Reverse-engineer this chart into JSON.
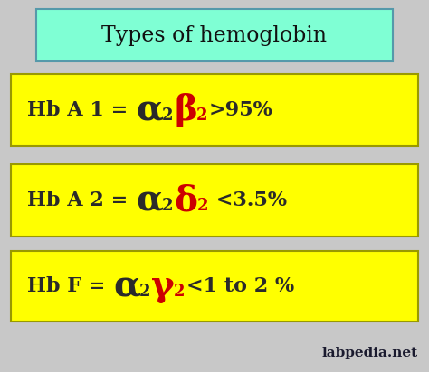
{
  "bg_color": "#c8c8c8",
  "title_text": "Types of hemoglobin",
  "title_bg": "#7fffd4",
  "title_border": "#5599aa",
  "yellow_bg": "#ffff00",
  "yellow_border": "#999900",
  "rows": [
    {
      "label": "Hb A 1 = ",
      "greek1": "α",
      "greek1_color": "#2a2a2a",
      "greek2": "β",
      "greek2_color": "#cc0000",
      "suffix": ">95%"
    },
    {
      "label": "Hb A 2 = ",
      "greek1": "α",
      "greek1_color": "#2a2a2a",
      "greek2": "δ",
      "greek2_color": "#cc0000",
      "suffix": " <3.5%"
    },
    {
      "label": "Hb F = ",
      "greek1": "α",
      "greek1_color": "#2a2a2a",
      "greek2": "γ",
      "greek2_color": "#cc0000",
      "suffix": "<1 to 2 %"
    }
  ],
  "watermark": "labpedia.net",
  "watermark_color": "#1a1a2e",
  "watermark_size": 11,
  "title_fontsize": 17,
  "label_fontsize": 16,
  "greek_fontsize": 28,
  "sub_fontsize": 13,
  "suffix_fontsize": 16
}
